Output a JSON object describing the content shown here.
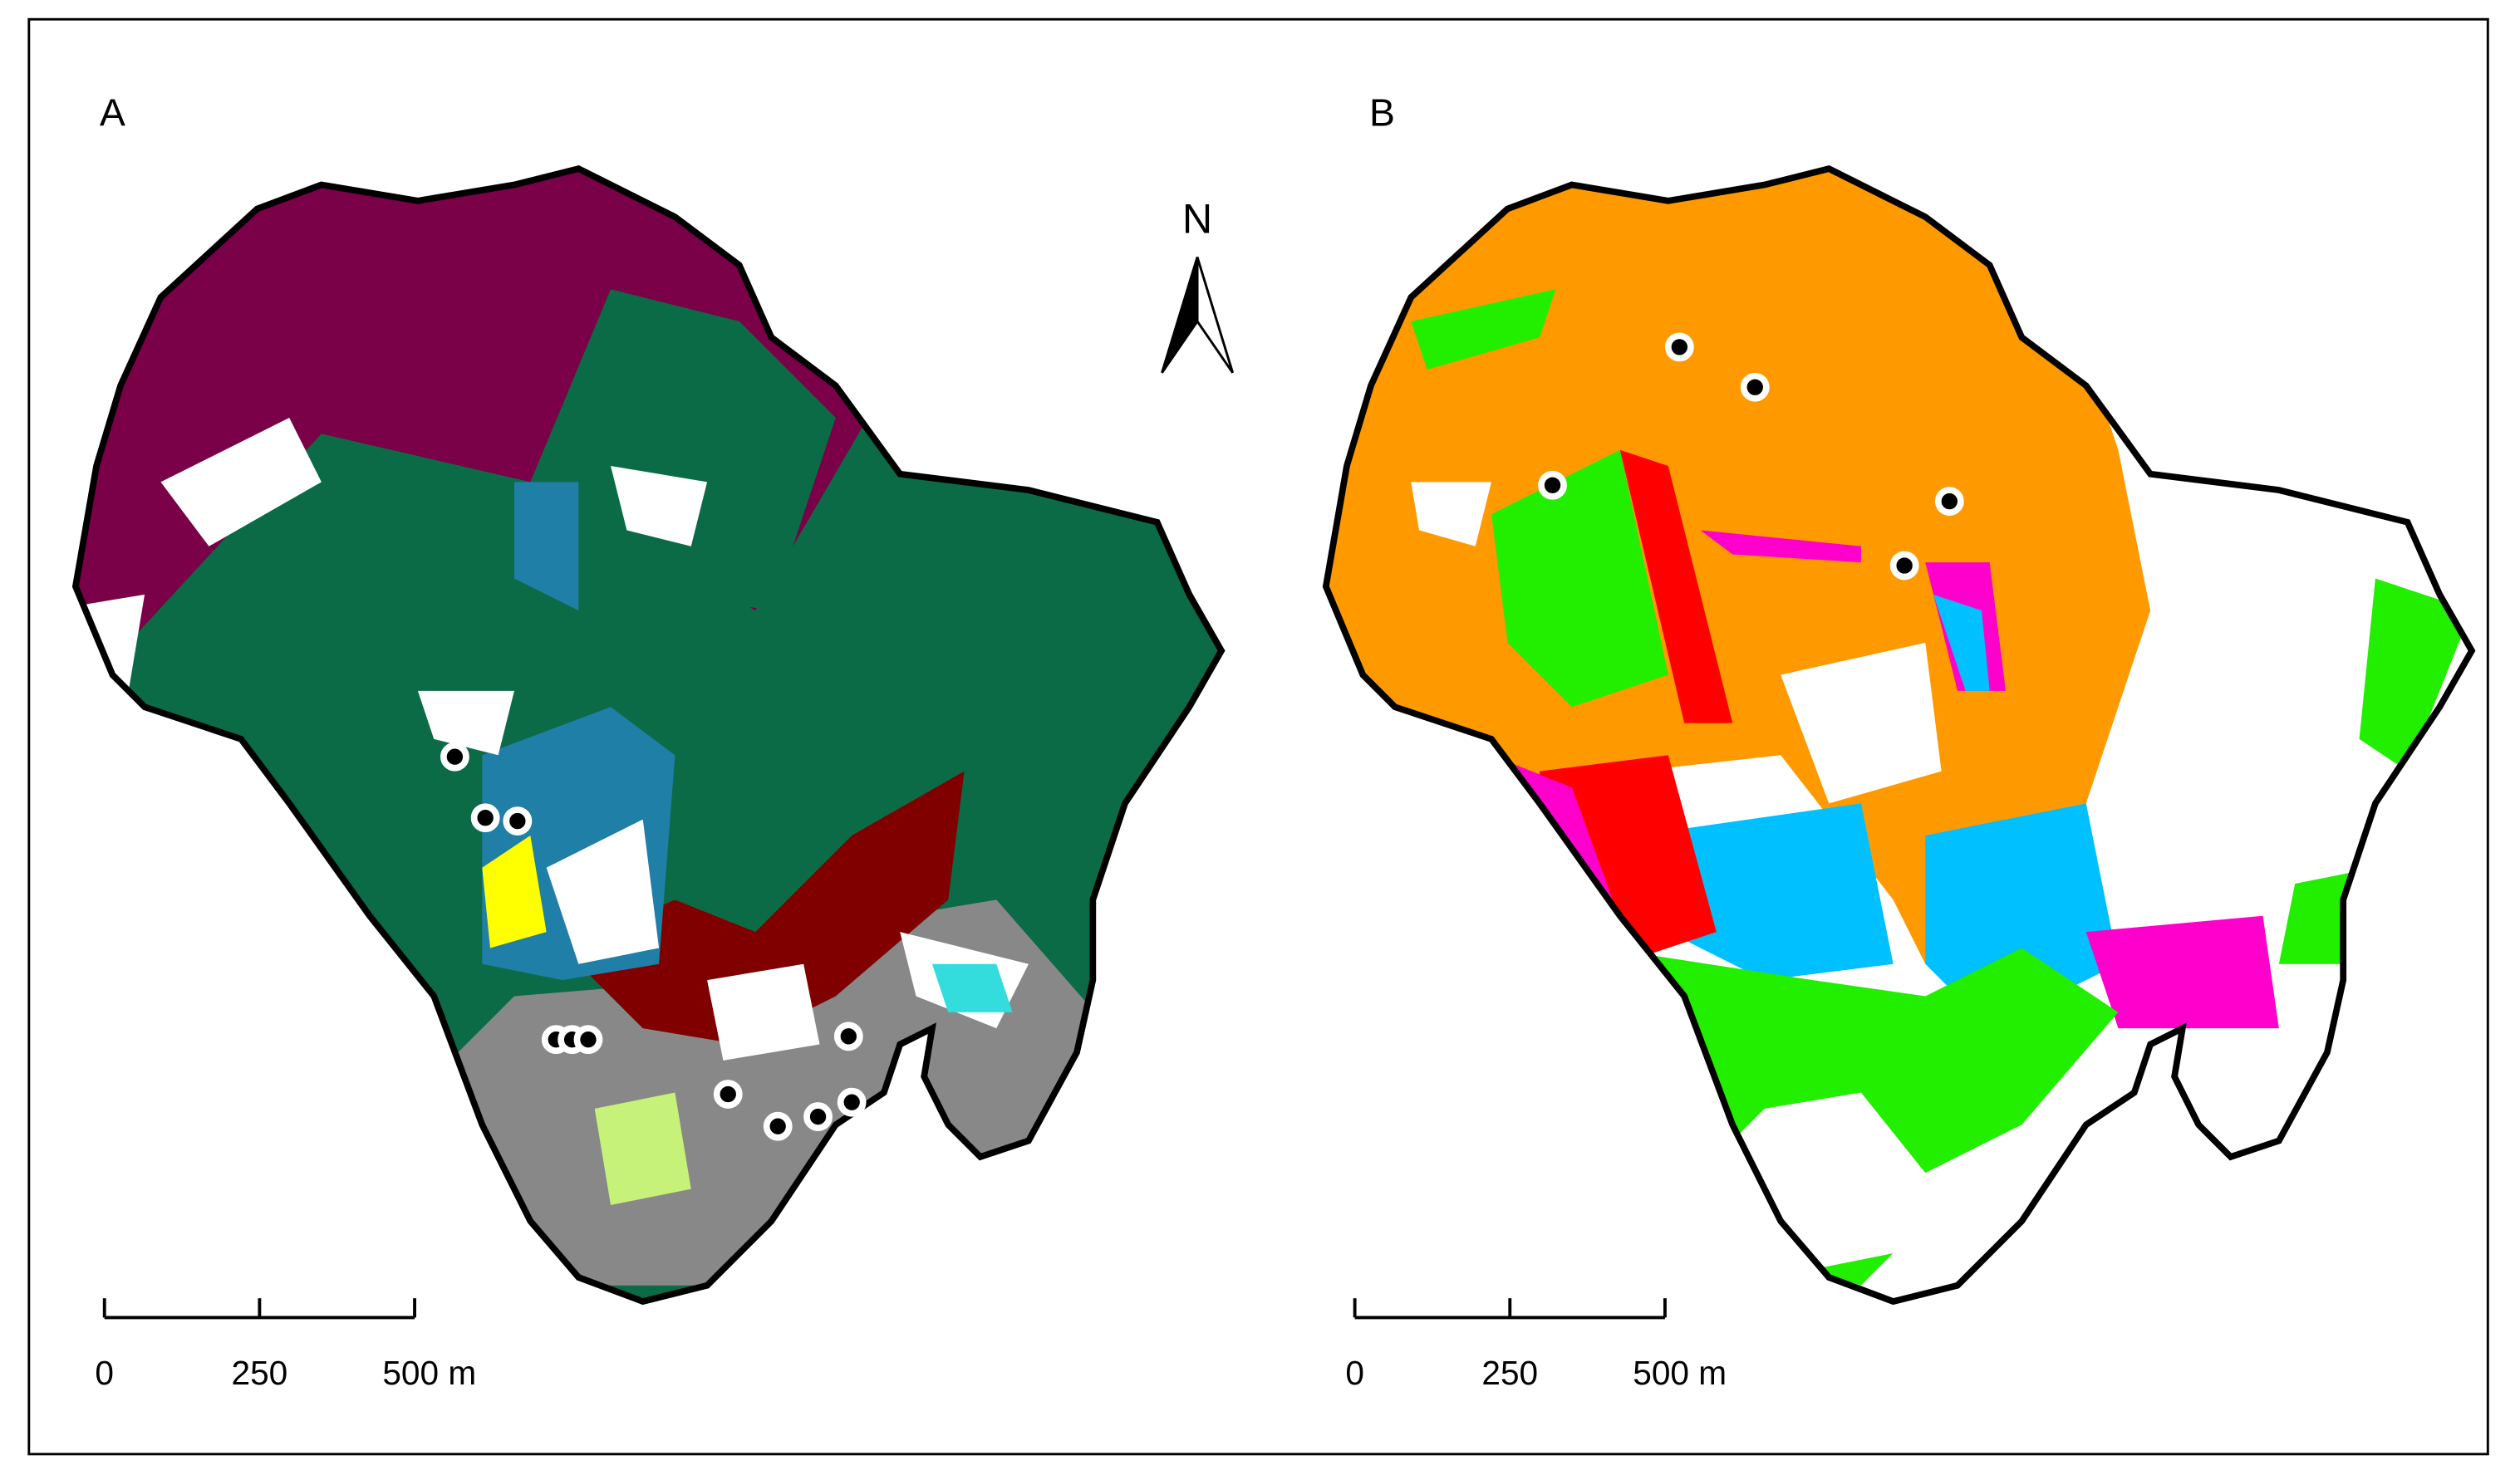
{
  "panels": [
    {
      "label": "A",
      "scale_bar": {
        "lim": [
          0,
          500
        ],
        "ticks": [
          0,
          250,
          {
            "value": 500,
            "label": "500 m"
          }
        ]
      }
    },
    {
      "label": "B",
      "scale_bar": {
        "lim": [
          0,
          500
        ],
        "ticks": [
          0,
          250,
          {
            "value": 500,
            "label": "500 m"
          }
        ]
      }
    }
  ],
  "north_arrow": {
    "label": "N"
  }
}
